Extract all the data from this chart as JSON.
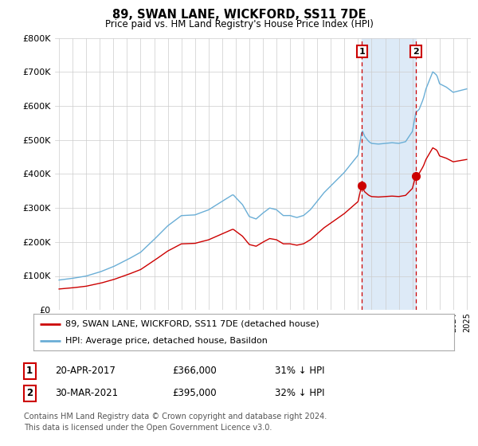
{
  "title": "89, SWAN LANE, WICKFORD, SS11 7DE",
  "subtitle": "Price paid vs. HM Land Registry's House Price Index (HPI)",
  "ylim": [
    0,
    800000
  ],
  "ylabel_ticks": [
    0,
    100000,
    200000,
    300000,
    400000,
    500000,
    600000,
    700000,
    800000
  ],
  "sale1_year": 2017.29,
  "sale1_price": 366000,
  "sale2_year": 2021.25,
  "sale2_price": 395000,
  "legend_entry1": "89, SWAN LANE, WICKFORD, SS11 7DE (detached house)",
  "legend_entry2": "HPI: Average price, detached house, Basildon",
  "footnote1": "Contains HM Land Registry data © Crown copyright and database right 2024.",
  "footnote2": "This data is licensed under the Open Government Licence v3.0.",
  "table_row1": [
    "1",
    "20-APR-2017",
    "£366,000",
    "31% ↓ HPI"
  ],
  "table_row2": [
    "2",
    "30-MAR-2021",
    "£395,000",
    "32% ↓ HPI"
  ],
  "highlight_color": "#ddeaf7",
  "red_color": "#cc0000",
  "blue_color": "#6aaed6",
  "background_color": "#ffffff",
  "grid_color": "#cccccc"
}
